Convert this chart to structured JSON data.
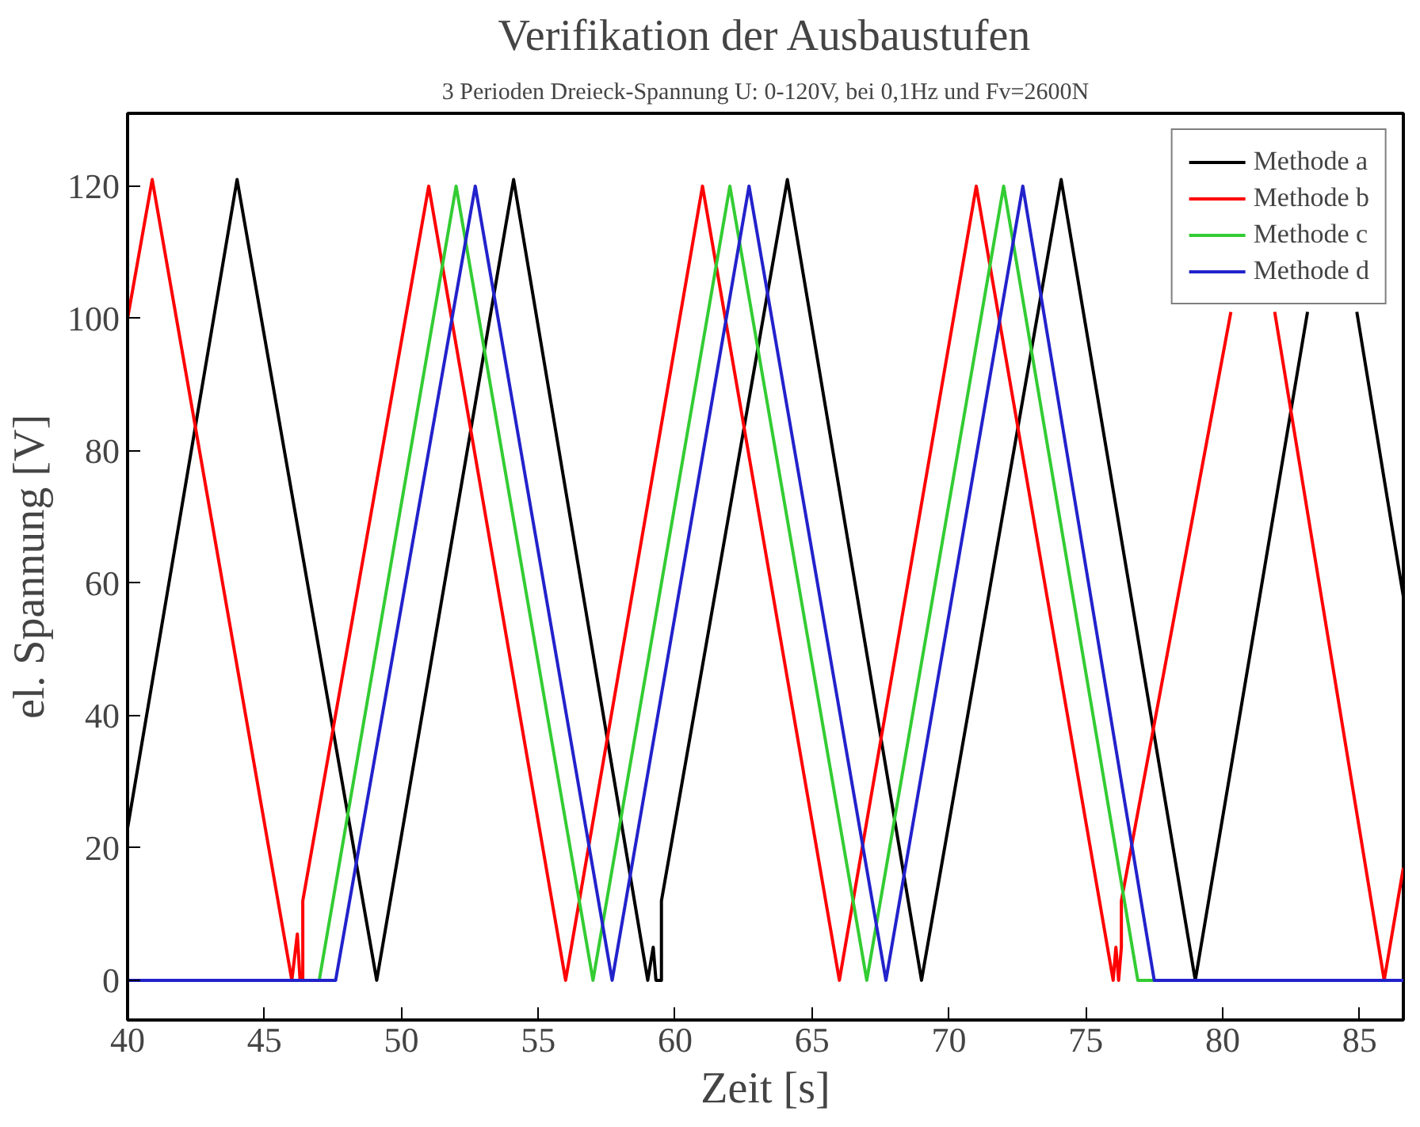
{
  "chart_data": {
    "type": "line",
    "title": "Verifikation der Ausbaustufen",
    "subtitle": "3 Perioden Dreieck-Spannung U: 0-120V, bei 0,1Hz und Fv=2600N",
    "xlabel": "Zeit [s]",
    "ylabel": "el. Spannung [V]",
    "xlim": [
      40,
      86.6
    ],
    "ylim": [
      -6,
      131
    ],
    "xticks": [
      40,
      45,
      50,
      55,
      60,
      65,
      70,
      75,
      80,
      85
    ],
    "yticks": [
      0,
      20,
      40,
      60,
      80,
      100,
      120
    ],
    "grid": false,
    "legend": "top right",
    "marker": "none",
    "line_style": "solid",
    "series": [
      {
        "name": "Methode a",
        "color": "#000000",
        "x": [
          40,
          44,
          49.1,
          54.1,
          59,
          59.2,
          59.3,
          59.5,
          59.5,
          64.1,
          69,
          74.1,
          79,
          83.1,
          84,
          84.9,
          86.6
        ],
        "values": [
          23,
          121,
          0,
          121,
          0,
          5,
          0,
          0,
          12,
          121,
          0,
          121,
          0,
          101,
          null,
          101,
          58
        ]
      },
      {
        "name": "Methode b",
        "color": "#ff0000",
        "x": [
          40,
          40.9,
          46,
          46.2,
          46.3,
          46.4,
          46.4,
          51,
          56,
          61,
          66,
          71,
          76,
          76.1,
          76.2,
          76.3,
          76.3,
          80.3,
          81.1,
          81.9,
          85.9,
          86.6
        ],
        "values": [
          100,
          121,
          0,
          7,
          0,
          0,
          12,
          120,
          0,
          120,
          0,
          120,
          0,
          5,
          0,
          5,
          12,
          101,
          null,
          101,
          0,
          17
        ]
      },
      {
        "name": "Methode c",
        "color": "#33cc33",
        "x": [
          47,
          52,
          57,
          62,
          67,
          72,
          76.9,
          77.5
        ],
        "values": [
          0,
          120,
          0,
          120,
          0,
          120,
          0,
          0
        ]
      },
      {
        "name": "Methode d",
        "color": "#2222cc",
        "x": [
          40,
          47.6,
          52.7,
          57.7,
          62.7,
          67.7,
          72.7,
          77.5,
          86.6
        ],
        "values": [
          0,
          0,
          120,
          0,
          120,
          0,
          120,
          0,
          0
        ]
      }
    ]
  }
}
